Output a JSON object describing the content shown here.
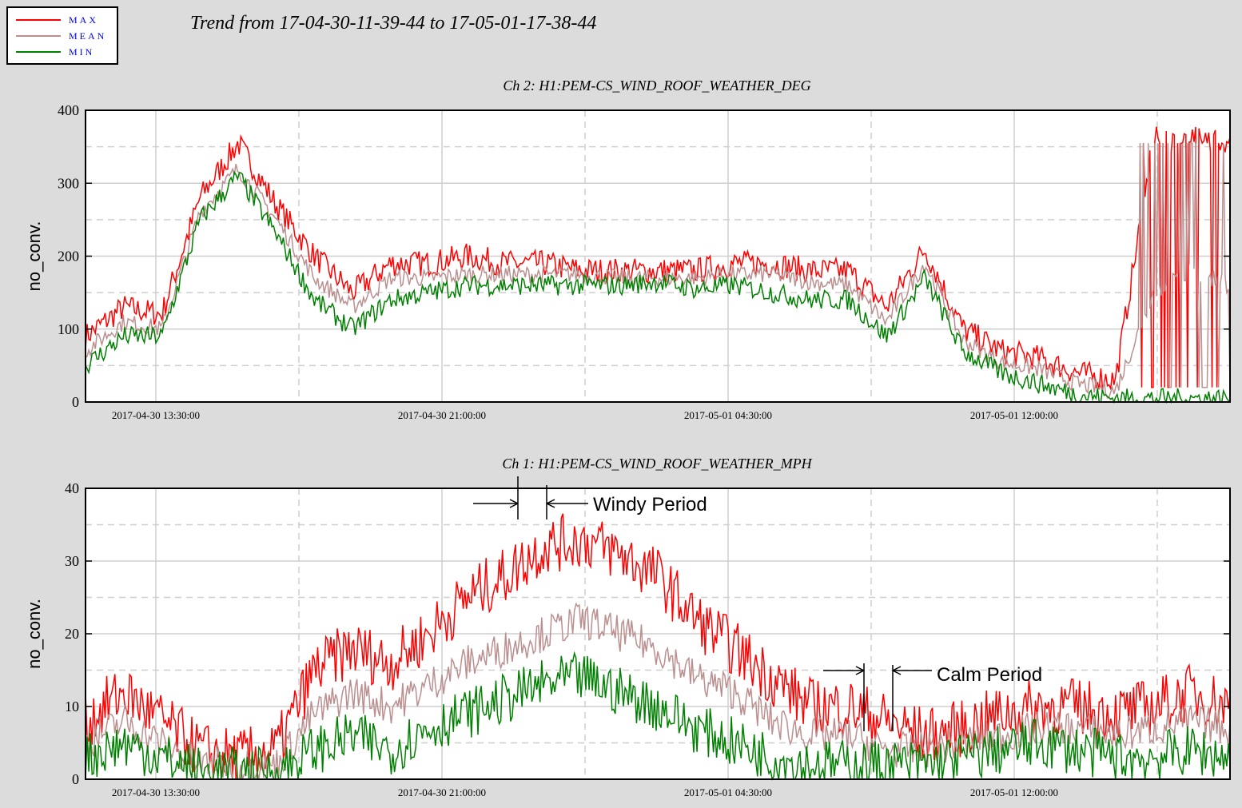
{
  "title": "Trend from 17-04-30-11-39-44 to 17-05-01-17-38-44",
  "legend": [
    {
      "label": "MAX",
      "color": "#ff0000"
    },
    {
      "label": "MEAN",
      "color": "#bc8f8f"
    },
    {
      "label": "MIN",
      "color": "#008000"
    }
  ],
  "colors": {
    "max": "#ff0000",
    "mean": "#bc8f8f",
    "min": "#008000",
    "plot_bg": "#ffffff",
    "page_bg": "#dcdcdc",
    "grid": "#cfcfcf"
  },
  "chart_data": [
    {
      "type": "line",
      "title": "Ch 2: H1:PEM-CS_WIND_ROOF_WEATHER_DEG",
      "ylabel": "no_conv.",
      "ylim": [
        0,
        400
      ],
      "yticks": [
        "0",
        "100",
        "200",
        "300",
        "400"
      ],
      "xticks": [
        "2017-04-30 13:30:00",
        "2017-04-30 21:00:00",
        "2017-05-01 04:30:00",
        "2017-05-01 12:00:00"
      ],
      "grid": true,
      "x_hours_from_start": [
        0,
        1,
        2,
        3,
        4,
        5,
        6,
        7,
        8,
        9,
        10,
        11,
        12,
        13,
        14,
        15,
        16,
        17,
        18,
        19,
        20,
        21,
        22,
        23,
        24,
        25,
        26,
        27,
        28,
        29,
        30
      ],
      "series": [
        {
          "name": "MAX",
          "values": [
            90,
            130,
            120,
            280,
            355,
            270,
            200,
            150,
            190,
            190,
            200,
            190,
            190,
            180,
            180,
            180,
            180,
            190,
            190,
            180,
            180,
            130,
            210,
            100,
            70,
            60,
            40,
            30,
            360,
            360,
            360
          ]
        },
        {
          "name": "MEAN",
          "values": [
            70,
            110,
            100,
            260,
            320,
            250,
            170,
            130,
            170,
            170,
            175,
            175,
            175,
            175,
            170,
            170,
            170,
            175,
            175,
            165,
            160,
            110,
            190,
            85,
            55,
            45,
            25,
            15,
            150,
            180,
            160
          ]
        },
        {
          "name": "MIN",
          "values": [
            50,
            90,
            90,
            250,
            310,
            230,
            140,
            100,
            140,
            150,
            160,
            160,
            160,
            160,
            160,
            165,
            155,
            160,
            150,
            140,
            140,
            90,
            170,
            70,
            40,
            25,
            10,
            5,
            5,
            5,
            5
          ]
        }
      ]
    },
    {
      "type": "line",
      "title": "Ch 1: H1:PEM-CS_WIND_ROOF_WEATHER_MPH",
      "ylabel": "no_conv.",
      "ylim": [
        0,
        40
      ],
      "yticks": [
        "0",
        "10",
        "20",
        "30",
        "40"
      ],
      "xticks": [
        "2017-04-30 13:30:00",
        "2017-04-30 21:00:00",
        "2017-05-01 04:30:00",
        "2017-05-01 12:00:00"
      ],
      "grid": true,
      "x_hours_from_start": [
        0,
        1,
        2,
        3,
        4,
        5,
        6,
        7,
        8,
        9,
        10,
        11,
        12,
        13,
        14,
        15,
        16,
        17,
        18,
        19,
        20,
        21,
        22,
        23,
        24,
        25,
        26,
        27,
        28,
        29,
        30
      ],
      "series": [
        {
          "name": "MAX",
          "values": [
            8,
            12,
            8,
            4,
            3,
            4,
            15,
            18,
            16,
            20,
            25,
            28,
            32,
            33,
            31,
            28,
            22,
            18,
            14,
            10,
            10,
            8,
            6,
            7,
            9,
            10,
            10,
            9,
            10,
            12,
            10
          ]
        },
        {
          "name": "MEAN",
          "values": [
            5,
            8,
            5,
            2,
            2,
            2,
            9,
            12,
            10,
            13,
            16,
            18,
            20,
            22,
            20,
            18,
            14,
            12,
            8,
            6,
            6,
            4,
            4,
            5,
            6,
            7,
            7,
            6,
            7,
            8,
            7
          ]
        },
        {
          "name": "MIN",
          "values": [
            3,
            5,
            3,
            1,
            1,
            1,
            4,
            6,
            4,
            7,
            9,
            11,
            13,
            14,
            12,
            10,
            7,
            5,
            3,
            2,
            2,
            2,
            2,
            3,
            4,
            5,
            4,
            3,
            3,
            4,
            3
          ]
        }
      ],
      "annotations": [
        {
          "text": "Windy Period"
        },
        {
          "text": "Calm Period"
        }
      ]
    }
  ]
}
